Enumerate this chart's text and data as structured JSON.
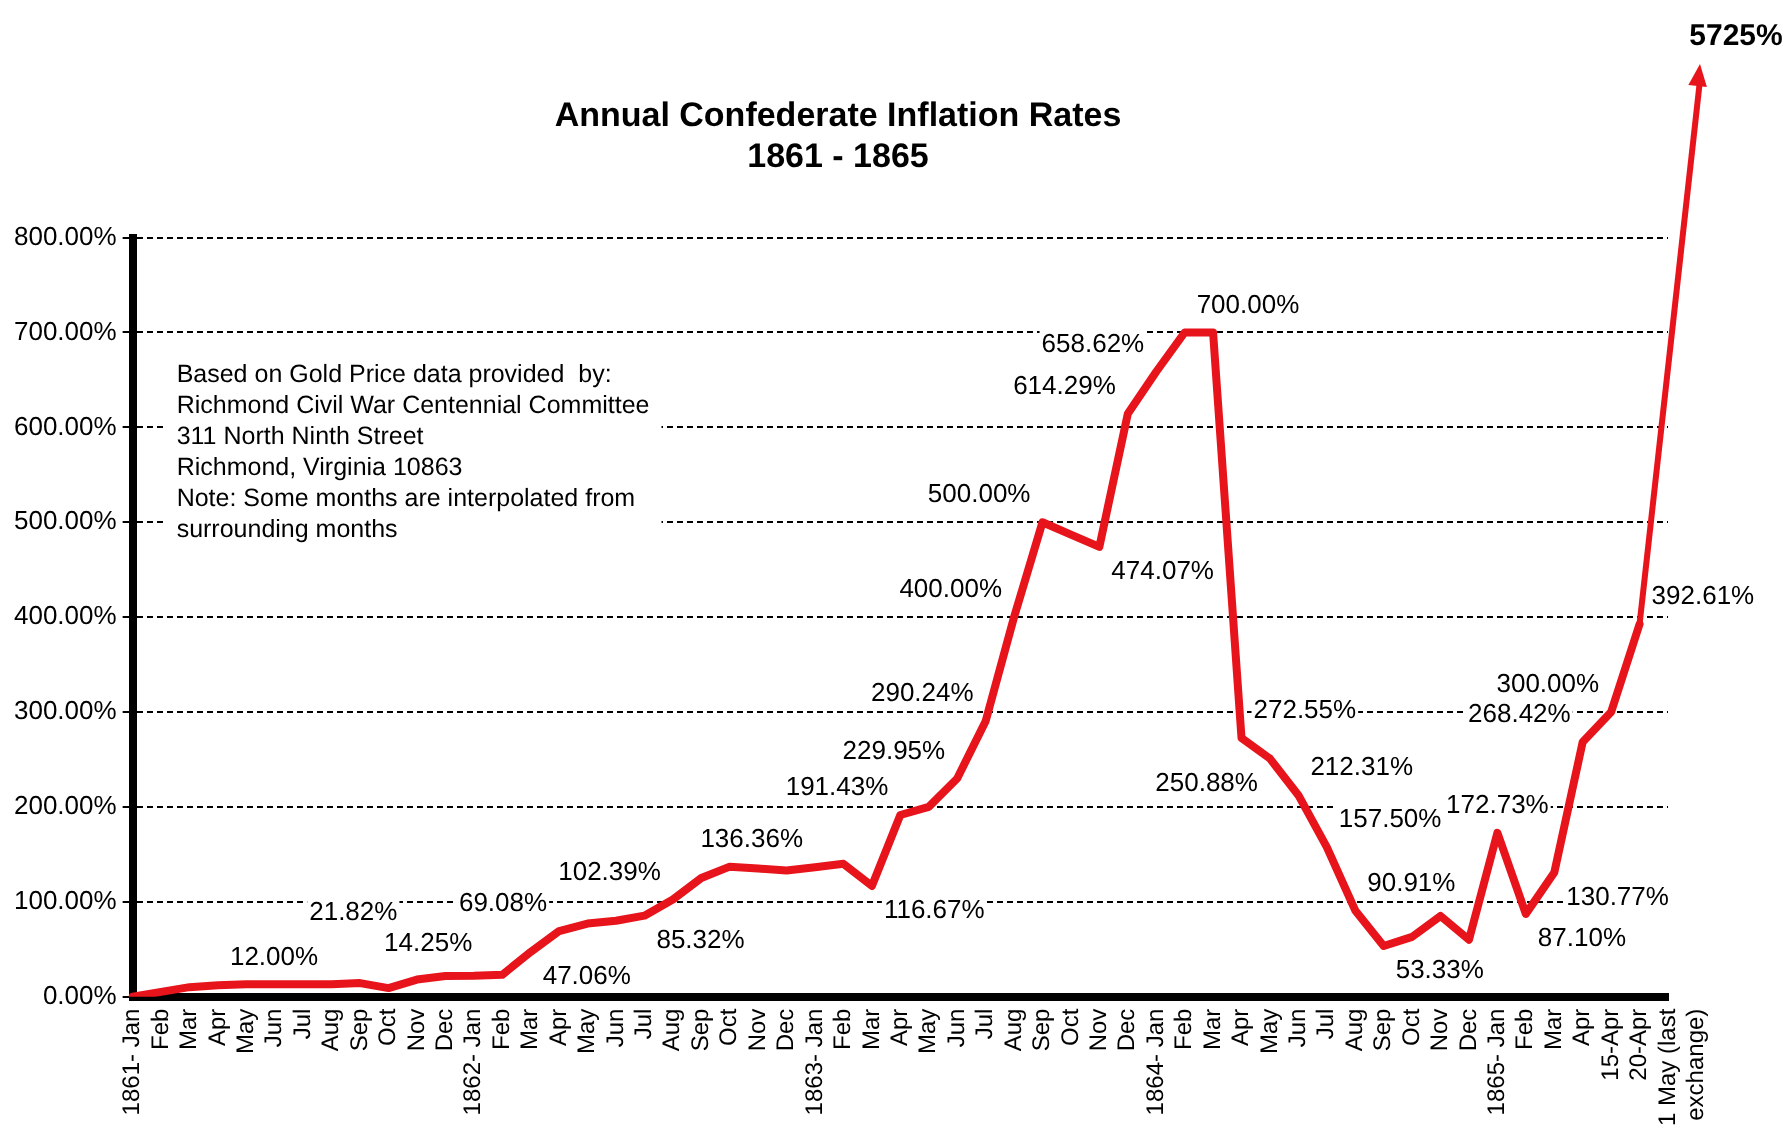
{
  "chart_data": {
    "type": "line",
    "title": "Annual Confederate Inflation Rates",
    "subtitle": "1861 - 1865",
    "categories": [
      "1861- Jan",
      "Feb",
      "Mar",
      "Apr",
      "May",
      "Jun",
      "Jul",
      "Aug",
      "Sep",
      "Oct",
      "Nov",
      "Dec",
      "1862- Jan",
      "Feb",
      "Mar",
      "Apr",
      "May",
      "Jun",
      "Jul",
      "Aug",
      "Sep",
      "Oct",
      "Nov",
      "Dec",
      "1863- Jan",
      "Feb",
      "Mar",
      "Apr",
      "May",
      "Jun",
      "Jul",
      "Aug",
      "Sep",
      "Oct",
      "Nov",
      "Dec",
      "1864- Jan",
      "Feb",
      "Mar",
      "Apr",
      "May",
      "Jun",
      "Jul",
      "Aug",
      "Sep",
      "Oct",
      "Nov",
      "Dec",
      "1865- Jan",
      "Feb",
      "Mar",
      "Apr",
      "15-Apr",
      "20-Apr",
      "1 May (last exchange)"
    ],
    "series": [
      {
        "color": "#e8141b",
        "values": [
          0,
          5,
          10,
          12,
          13,
          13,
          13,
          13,
          14.25,
          9,
          18,
          21.82,
          22,
          23,
          47.06,
          69.08,
          77,
          80,
          85.32,
          102.39,
          125,
          137,
          135,
          133,
          136.36,
          140,
          116.67,
          191.43,
          200,
          229.95,
          290.24,
          400,
          500,
          487,
          474.07,
          614.29,
          658.62,
          700,
          700,
          272.55,
          250.88,
          212.31,
          157.5,
          90.91,
          53.33,
          63,
          85,
          60,
          172.73,
          87.1,
          130.77,
          268.42,
          300,
          392.61,
          null
        ],
        "value_labels": [
          null,
          null,
          null,
          "12.00%",
          null,
          null,
          null,
          null,
          "14.25%",
          null,
          null,
          "21.82%",
          null,
          null,
          "47.06%",
          "69.08%",
          null,
          null,
          "85.32%",
          "102.39%",
          null,
          null,
          null,
          null,
          "136.36%",
          null,
          "116.67%",
          "191.43%",
          null,
          "229.95%",
          "290.24%",
          "400.00%",
          "500.00%",
          null,
          "474.07%",
          "614.29%",
          "658.62%",
          "700.00%",
          null,
          "272.55%",
          "250.88%",
          "212.31%",
          "157.50%",
          "90.91%",
          "53.33%",
          null,
          null,
          null,
          "172.73%",
          "87.10%",
          "130.77%",
          "268.42%",
          "300.00%",
          "392.61%",
          null
        ]
      }
    ],
    "ylim": [
      0,
      800
    ],
    "yticks": [
      {
        "value": 0,
        "label": "0.00%"
      },
      {
        "value": 100,
        "label": "100.00%"
      },
      {
        "value": 200,
        "label": "200.00%"
      },
      {
        "value": 300,
        "label": "300.00%"
      },
      {
        "value": 400,
        "label": "400.00%"
      },
      {
        "value": 500,
        "label": "500.00%"
      },
      {
        "value": 600,
        "label": "600.00%"
      },
      {
        "value": 700,
        "label": "700.00%"
      },
      {
        "value": 800,
        "label": "800.00%"
      }
    ],
    "grid": "y",
    "marker": "none",
    "line_style": "solid",
    "annotations": [
      "Based on Gold Price data provided  by:\nRichmond Civil War Centennial Committee\n311 North Ninth Street\nRichmond, Virginia 10863\nNote: Some months are interpolated from\nsurrounding months",
      "5725%"
    ]
  }
}
